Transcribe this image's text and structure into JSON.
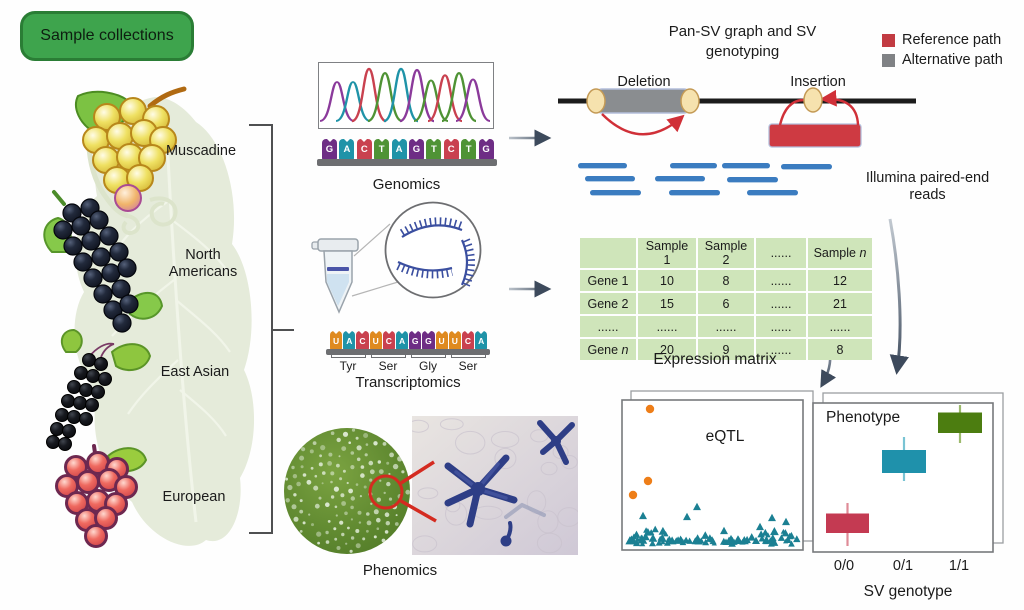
{
  "sample_collections": {
    "label": "Sample collections",
    "bg": "#3ea44d",
    "border": "#2a7d35"
  },
  "grape_groups": [
    {
      "label": "Muscadine"
    },
    {
      "label": "North Americans"
    },
    {
      "label": "East Asian"
    },
    {
      "label": "European"
    }
  ],
  "genomics": {
    "label": "Genomics",
    "sequence": [
      {
        "base": "G",
        "color": "#6e2d85"
      },
      {
        "base": "A",
        "color": "#1f93a8"
      },
      {
        "base": "C",
        "color": "#c9414f"
      },
      {
        "base": "T",
        "color": "#4f9335"
      },
      {
        "base": "A",
        "color": "#1f93a8"
      },
      {
        "base": "G",
        "color": "#6e2d85"
      },
      {
        "base": "T",
        "color": "#4f9335"
      },
      {
        "base": "C",
        "color": "#c9414f"
      },
      {
        "base": "T",
        "color": "#4f9335"
      },
      {
        "base": "G",
        "color": "#6e2d85"
      }
    ]
  },
  "transcriptomics": {
    "label": "Transcriptomics",
    "sequence": [
      {
        "base": "U",
        "color": "#df8a1f"
      },
      {
        "base": "A",
        "color": "#1f93a8"
      },
      {
        "base": "C",
        "color": "#c9414f"
      },
      {
        "base": "U",
        "color": "#df8a1f"
      },
      {
        "base": "C",
        "color": "#c9414f"
      },
      {
        "base": "A",
        "color": "#1f93a8"
      },
      {
        "base": "G",
        "color": "#6e2d85"
      },
      {
        "base": "G",
        "color": "#6e2d85"
      },
      {
        "base": "U",
        "color": "#df8a1f"
      },
      {
        "base": "U",
        "color": "#df8a1f"
      },
      {
        "base": "C",
        "color": "#c9414f"
      },
      {
        "base": "A",
        "color": "#1f93a8"
      }
    ],
    "codons": [
      "Tyr",
      "Ser",
      "Gly",
      "Ser"
    ]
  },
  "phenomics": {
    "label": "Phenomics"
  },
  "pan_sv": {
    "title": "Pan-SV graph and SV genotyping",
    "deletion_label": "Deletion",
    "insertion_label": "Insertion",
    "legend": [
      {
        "label": "Reference path",
        "color": "#c23b42"
      },
      {
        "label": "Alternative path",
        "color": "#808285"
      }
    ]
  },
  "illumina": {
    "label": "Illumina paired-end reads"
  },
  "expression_matrix": {
    "caption": "Expression matrix",
    "headers": [
      "",
      "Sample 1",
      "Sample 2",
      "......",
      "Sample n"
    ],
    "rows": [
      [
        "Gene 1",
        "10",
        "8",
        "......",
        "12"
      ],
      [
        "Gene 2",
        "15",
        "6",
        "......",
        "21"
      ],
      [
        "......",
        "......",
        "......",
        "......",
        "......"
      ],
      [
        "Gene n",
        "20",
        "9",
        "......",
        "8"
      ]
    ]
  },
  "eqtl": {
    "label": "eQTL",
    "point_color": "#1b8093",
    "outlier_color": "#ee7e18",
    "outliers": [
      [
        650,
        409
      ],
      [
        648,
        481
      ],
      [
        633,
        495
      ]
    ]
  },
  "phenotype": {
    "label": "Phenotype",
    "xlabel": "SV genotype",
    "categories": [
      "0/0",
      "0/1",
      "1/1"
    ],
    "boxes": [
      {
        "genotype": "0/0",
        "color": "#c43a52",
        "whisker": "#df8b97",
        "level": "low"
      },
      {
        "genotype": "0/1",
        "color": "#1f91ab",
        "whisker": "#79c4d4",
        "level": "mid"
      },
      {
        "genotype": "1/1",
        "color": "#4c7d10",
        "whisker": "#9cba6d",
        "level": "high"
      }
    ]
  }
}
